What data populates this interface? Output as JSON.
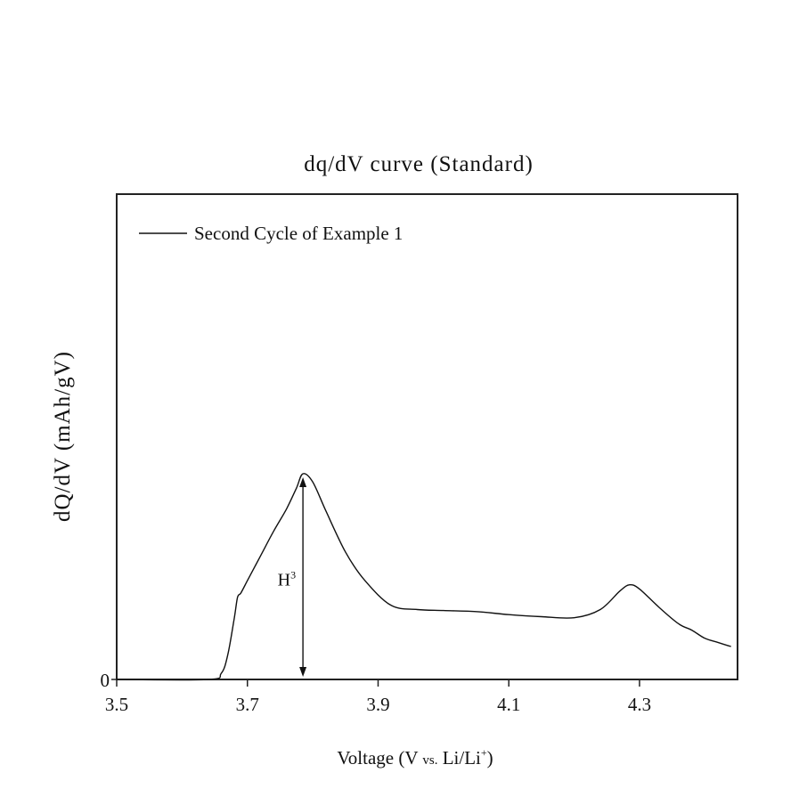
{
  "chart_data": {
    "type": "line",
    "title": "dq/dV curve (Standard)",
    "xlabel_main": "Voltage (V",
    "xlabel_small": "vs.",
    "xlabel_tail": "Li/Li",
    "xlabel_sup": "+",
    "xlabel_close": ")",
    "ylabel": "dQ/dV (mAh/gV)",
    "xlim": [
      3.5,
      4.45
    ],
    "ylim": [
      0,
      100
    ],
    "x_ticks": [
      {
        "value": 3.5,
        "label": "3.5"
      },
      {
        "value": 3.7,
        "label": "3.7"
      },
      {
        "value": 3.9,
        "label": "3.9"
      },
      {
        "value": 4.1,
        "label": "4.1"
      },
      {
        "value": 4.3,
        "label": "4.3"
      }
    ],
    "y_ticks": [
      {
        "value": 0,
        "label": "0"
      }
    ],
    "legend": {
      "position": "top-left",
      "entries": [
        "Second Cycle of Example 1"
      ]
    },
    "grid": false,
    "series": [
      {
        "name": "Second Cycle of Example 1",
        "style": "solid",
        "x": [
          3.5,
          3.64,
          3.66,
          3.67,
          3.68,
          3.685,
          3.69,
          3.7,
          3.72,
          3.74,
          3.76,
          3.775,
          3.785,
          3.8,
          3.82,
          3.85,
          3.88,
          3.92,
          3.96,
          4.0,
          4.05,
          4.1,
          4.15,
          4.2,
          4.24,
          4.27,
          4.285,
          4.3,
          4.33,
          4.36,
          4.38,
          4.4,
          4.42,
          4.44
        ],
        "y": [
          0,
          0,
          3,
          12,
          30,
          40,
          42,
          48,
          60,
          72,
          83,
          93,
          100,
          96,
          82,
          62,
          48,
          36,
          34,
          33.5,
          33,
          31.5,
          30.5,
          30,
          34,
          43,
          46,
          44,
          35,
          27,
          24,
          20,
          18,
          16
        ]
      }
    ],
    "annotations": [
      {
        "type": "double-arrow",
        "x": 3.785,
        "y_from": 0,
        "y_to": 100,
        "label": "H",
        "label_sup": "3"
      }
    ]
  }
}
